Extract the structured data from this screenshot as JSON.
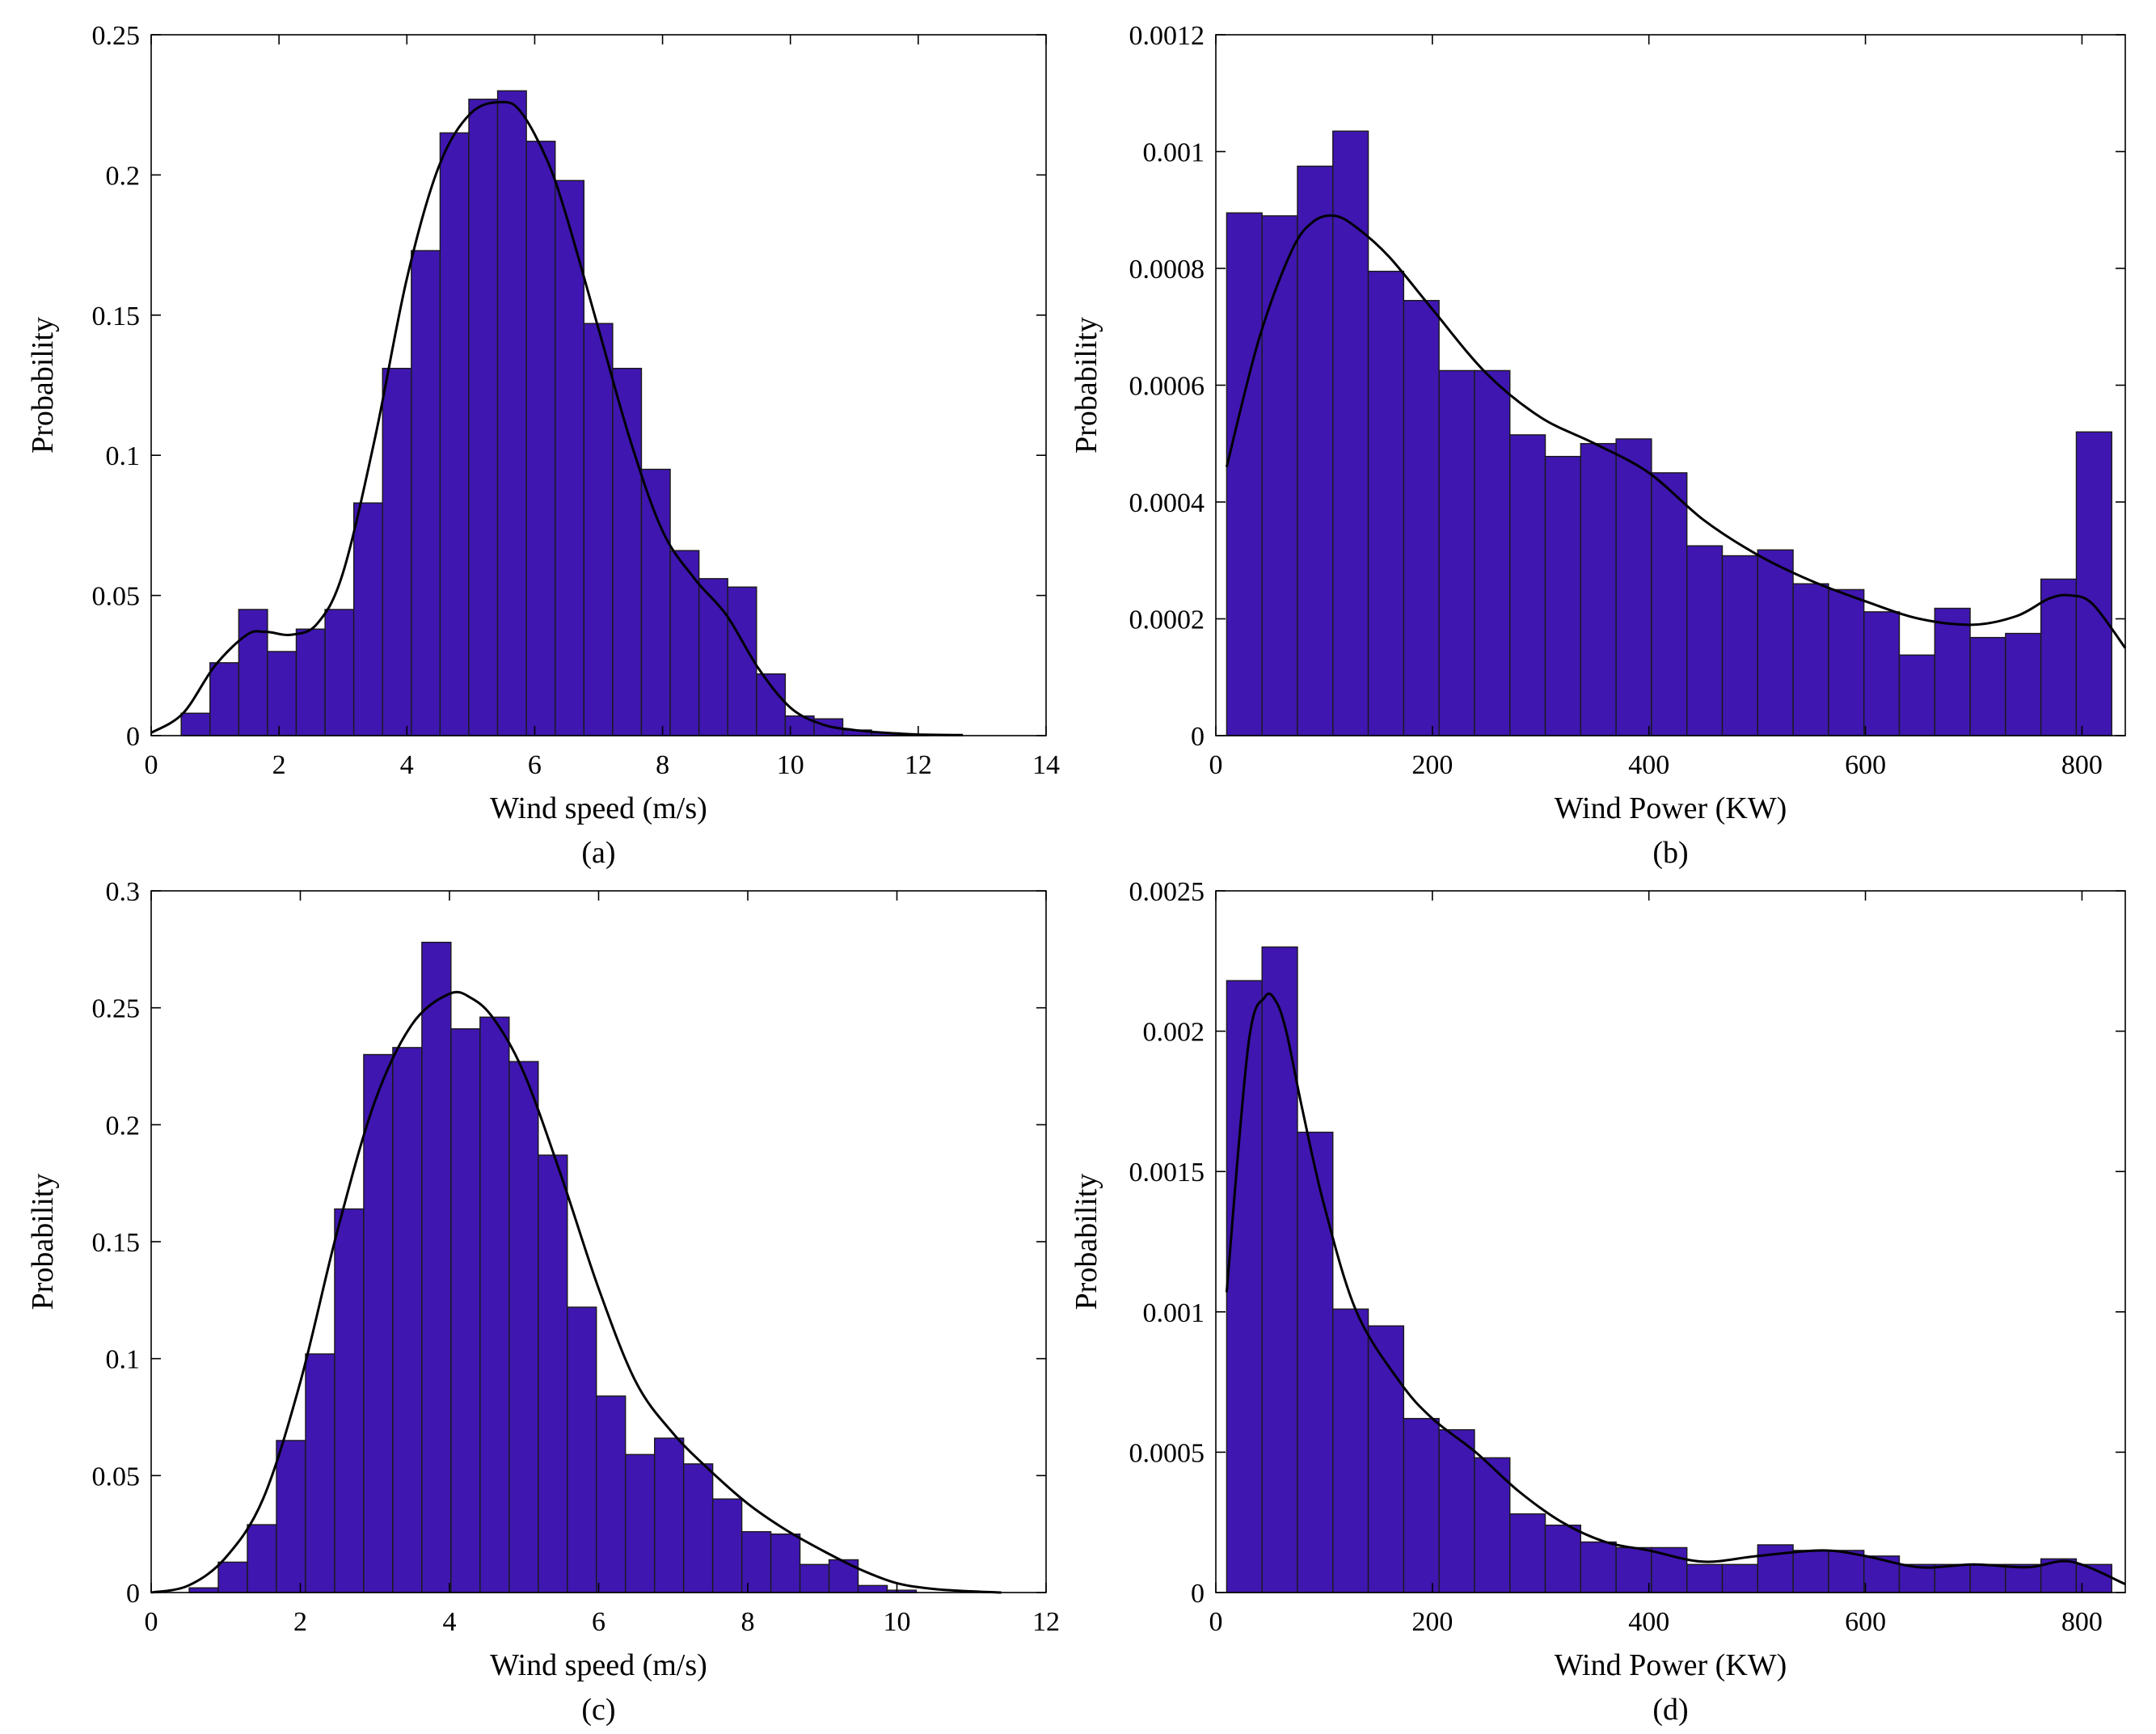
{
  "colors": {
    "bar": "#3f16b0",
    "bar_edge": "#1a1a1a",
    "curve": "#000000",
    "axis": "#000000"
  },
  "chart_data": [
    {
      "type": "bar",
      "caption": "(a)",
      "xlabel": "Wind speed (m/s)",
      "ylabel": "Probability",
      "xlim": [
        0,
        14
      ],
      "ylim": [
        0,
        0.25
      ],
      "xticks": [
        0,
        2,
        4,
        6,
        8,
        10,
        12,
        14
      ],
      "xtick_labels": [
        "0",
        "2",
        "4",
        "6",
        "8",
        "10",
        "12",
        "14"
      ],
      "yticks": [
        0,
        0.05,
        0.1,
        0.15,
        0.2,
        0.25
      ],
      "ytick_labels": [
        "0",
        "0.05",
        "0.1",
        "0.15",
        "0.2",
        "0.25"
      ],
      "bin_edges": [
        0.47,
        0.92,
        1.37,
        1.82,
        2.27,
        2.72,
        3.17,
        3.62,
        4.07,
        4.52,
        4.97,
        5.42,
        5.87,
        6.32,
        6.77,
        7.22,
        7.67,
        8.12,
        8.57,
        9.02,
        9.47,
        9.92,
        10.37,
        10.82,
        11.27,
        11.72,
        12.17
      ],
      "bar_values": [
        0.008,
        0.026,
        0.045,
        0.03,
        0.038,
        0.045,
        0.083,
        0.131,
        0.173,
        0.215,
        0.227,
        0.23,
        0.212,
        0.198,
        0.147,
        0.131,
        0.095,
        0.066,
        0.056,
        0.053,
        0.022,
        0.007,
        0.006,
        0.002,
        0.001,
        0.0005
      ],
      "fit_curve": {
        "x": [
          0,
          0.5,
          1.0,
          1.5,
          1.8,
          2.2,
          2.6,
          3.0,
          3.5,
          4.0,
          4.5,
          5.0,
          5.5,
          5.8,
          6.2,
          6.5,
          7.0,
          7.5,
          8.0,
          8.5,
          9.0,
          9.5,
          10.0,
          10.5,
          11.0,
          11.5,
          12.0,
          12.7
        ],
        "y": [
          0.001,
          0.008,
          0.025,
          0.036,
          0.037,
          0.036,
          0.04,
          0.058,
          0.106,
          0.163,
          0.203,
          0.222,
          0.226,
          0.222,
          0.205,
          0.185,
          0.145,
          0.105,
          0.073,
          0.056,
          0.043,
          0.024,
          0.01,
          0.004,
          0.002,
          0.001,
          0.0004,
          0.0002
        ]
      }
    },
    {
      "type": "bar",
      "caption": "(b)",
      "xlabel": "Wind Power (KW)",
      "ylabel": "Probability",
      "xlim": [
        0,
        840
      ],
      "ylim": [
        0,
        0.0012
      ],
      "xticks": [
        0,
        200,
        400,
        600,
        800
      ],
      "xtick_labels": [
        "0",
        "200",
        "400",
        "600",
        "800"
      ],
      "yticks": [
        0,
        0.0002,
        0.0004,
        0.0006,
        0.0008,
        0.001,
        0.0012
      ],
      "ytick_labels": [
        "0",
        "0.0002",
        "0.0004",
        "0.0006",
        "0.0008",
        "0.001",
        "0.0012"
      ],
      "bin_edges": [
        10,
        42.7,
        75.4,
        108.1,
        140.8,
        173.5,
        206.2,
        238.9,
        271.6,
        304.3,
        337,
        369.7,
        402.4,
        435.1,
        467.8,
        500.5,
        533.2,
        565.9,
        598.6,
        631.3,
        664,
        696.7,
        729.4,
        762.1,
        794.8,
        827.5
      ],
      "bar_values": [
        0.000895,
        0.00089,
        0.000975,
        0.001035,
        0.000795,
        0.000745,
        0.000625,
        0.000625,
        0.000515,
        0.000478,
        0.0005,
        0.000508,
        0.00045,
        0.000325,
        0.000308,
        0.000318,
        0.00026,
        0.00025,
        0.000212,
        0.000138,
        0.000218,
        0.000168,
        0.000175,
        0.000268,
        0.00052
      ],
      "fit_curve": {
        "x": [
          10,
          40,
          70,
          90,
          110,
          130,
          160,
          200,
          250,
          300,
          350,
          400,
          450,
          500,
          550,
          600,
          650,
          700,
          740,
          770,
          790,
          810,
          840
        ],
        "y": [
          0.00046,
          0.00068,
          0.00083,
          0.00088,
          0.00089,
          0.00087,
          0.00082,
          0.00073,
          0.00062,
          0.000545,
          0.0005,
          0.00045,
          0.00037,
          0.00031,
          0.000265,
          0.00023,
          0.0002,
          0.00019,
          0.000205,
          0.000235,
          0.00024,
          0.000225,
          0.00015
        ]
      }
    },
    {
      "type": "bar",
      "caption": "(c)",
      "xlabel": "Wind speed (m/s)",
      "ylabel": "Probability",
      "xlim": [
        0,
        12
      ],
      "ylim": [
        0,
        0.3
      ],
      "xticks": [
        0,
        2,
        4,
        6,
        8,
        10,
        12
      ],
      "xtick_labels": [
        "0",
        "2",
        "4",
        "6",
        "8",
        "10",
        "12"
      ],
      "yticks": [
        0,
        0.05,
        0.1,
        0.15,
        0.2,
        0.25,
        0.3
      ],
      "ytick_labels": [
        "0",
        "0.05",
        "0.1",
        "0.15",
        "0.2",
        "0.25",
        "0.3"
      ],
      "bin_edges": [
        0.51,
        0.9,
        1.29,
        1.68,
        2.07,
        2.46,
        2.85,
        3.24,
        3.63,
        4.02,
        4.41,
        4.8,
        5.19,
        5.58,
        5.97,
        6.36,
        6.75,
        7.14,
        7.53,
        7.92,
        8.31,
        8.7,
        9.09,
        9.48,
        9.87,
        10.26
      ],
      "bar_values": [
        0.002,
        0.013,
        0.029,
        0.065,
        0.102,
        0.164,
        0.23,
        0.233,
        0.278,
        0.241,
        0.246,
        0.227,
        0.187,
        0.122,
        0.084,
        0.059,
        0.066,
        0.055,
        0.04,
        0.026,
        0.025,
        0.012,
        0.014,
        0.003,
        0.001
      ],
      "fit_curve": {
        "x": [
          0,
          0.5,
          1.0,
          1.5,
          2.0,
          2.5,
          3.0,
          3.5,
          4.0,
          4.3,
          4.6,
          5.0,
          5.5,
          6.0,
          6.5,
          7.0,
          7.5,
          8.0,
          8.5,
          9.0,
          9.5,
          10.0,
          10.5,
          11.0,
          11.4
        ],
        "y": [
          0.0,
          0.003,
          0.015,
          0.04,
          0.09,
          0.155,
          0.21,
          0.243,
          0.256,
          0.254,
          0.245,
          0.222,
          0.178,
          0.13,
          0.09,
          0.068,
          0.052,
          0.038,
          0.027,
          0.018,
          0.01,
          0.004,
          0.0015,
          0.0005,
          0.0
        ]
      }
    },
    {
      "type": "bar",
      "caption": "(d)",
      "xlabel": "Wind Power (KW)",
      "ylabel": "Probability",
      "xlim": [
        0,
        840
      ],
      "ylim": [
        0,
        0.0025
      ],
      "xticks": [
        0,
        200,
        400,
        600,
        800
      ],
      "xtick_labels": [
        "0",
        "200",
        "400",
        "600",
        "800"
      ],
      "yticks": [
        0,
        0.0005,
        0.001,
        0.0015,
        0.002,
        0.0025
      ],
      "ytick_labels": [
        "0",
        "0.0005",
        "0.001",
        "0.0015",
        "0.002",
        "0.0025"
      ],
      "bin_edges": [
        10,
        42.7,
        75.4,
        108.1,
        140.8,
        173.5,
        206.2,
        238.9,
        271.6,
        304.3,
        337,
        369.7,
        402.4,
        435.1,
        467.8,
        500.5,
        533.2,
        565.9,
        598.6,
        631.3,
        664,
        696.7,
        729.4,
        762.1,
        794.8,
        827.5
      ],
      "bar_values": [
        0.00218,
        0.0023,
        0.00164,
        0.00101,
        0.00095,
        0.00062,
        0.00058,
        0.00048,
        0.00028,
        0.00024,
        0.00018,
        0.00016,
        0.00016,
        0.0001,
        0.0001,
        0.00017,
        0.00015,
        0.00015,
        0.00013,
        0.0001,
        0.0001,
        0.0001,
        0.0001,
        0.00012,
        0.0001
      ],
      "fit_curve": {
        "x": [
          10,
          30,
          45,
          55,
          65,
          80,
          100,
          130,
          170,
          200,
          240,
          280,
          320,
          360,
          400,
          450,
          500,
          560,
          600,
          650,
          700,
          750,
          790,
          840
        ],
        "y": [
          0.00107,
          0.00195,
          0.00212,
          0.00211,
          0.002,
          0.00172,
          0.00138,
          0.001,
          0.00075,
          0.00062,
          0.0005,
          0.00036,
          0.00025,
          0.00018,
          0.00015,
          0.00011,
          0.00013,
          0.00015,
          0.00013,
          9e-05,
          0.0001,
          9e-05,
          0.00011,
          3e-05
        ]
      }
    }
  ]
}
